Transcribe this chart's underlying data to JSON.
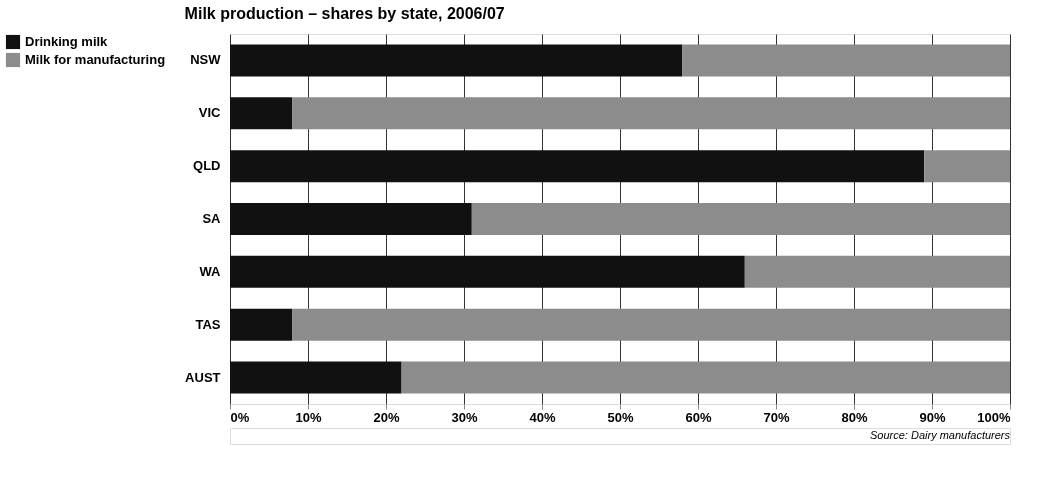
{
  "chart_data": {
    "type": "bar",
    "orientation": "horizontal",
    "stacked": true,
    "title": "Milk production – shares by state, 2006/07",
    "categories": [
      "NSW",
      "VIC",
      "QLD",
      "SA",
      "WA",
      "TAS",
      "AUST"
    ],
    "series": [
      {
        "name": "Drinking milk",
        "color": "#111111",
        "values": [
          58,
          8,
          89,
          31,
          66,
          8,
          22
        ]
      },
      {
        "name": "Milk for manufacturing",
        "color": "#8c8c8c",
        "values": [
          42,
          92,
          11,
          69,
          34,
          92,
          78
        ]
      }
    ],
    "xlim": [
      0,
      100
    ],
    "xticks": [
      {
        "value": 0,
        "label": "0%"
      },
      {
        "value": 10,
        "label": "10%"
      },
      {
        "value": 20,
        "label": "20%"
      },
      {
        "value": 30,
        "label": "30%"
      },
      {
        "value": 40,
        "label": "40%"
      },
      {
        "value": 50,
        "label": "50%"
      },
      {
        "value": 60,
        "label": "60%"
      },
      {
        "value": 70,
        "label": "70%"
      },
      {
        "value": 80,
        "label": "80%"
      },
      {
        "value": 90,
        "label": "90%"
      },
      {
        "value": 100,
        "label": "100%"
      }
    ],
    "grid": "x",
    "legend": "top left",
    "annotations": [
      "Source: Dairy manufacturers"
    ]
  }
}
